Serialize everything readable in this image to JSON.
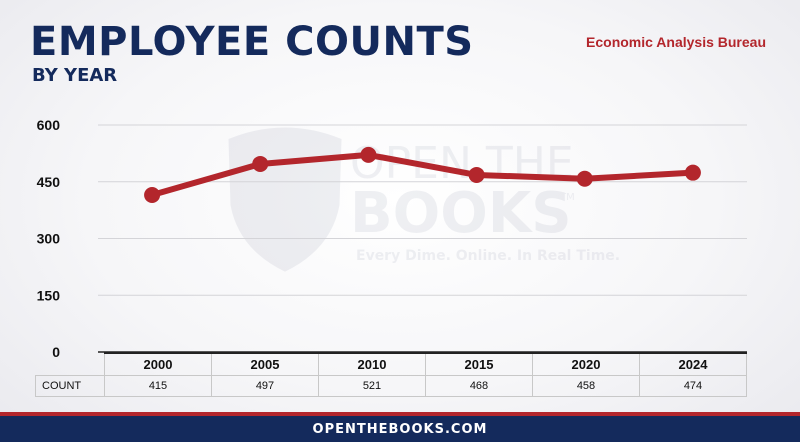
{
  "header": {
    "title": "EMPLOYEE COUNTS",
    "subtitle": "BY YEAR",
    "source": "Economic Analysis Bureau"
  },
  "watermark": {
    "line1": "OPEN THE",
    "line2": "BOOKS",
    "tagline": "Every Dime. Online. In Real Time.",
    "trademark": "TM"
  },
  "footer": {
    "text": "OPENTHEBOOKS.COM"
  },
  "colors": {
    "navy": "#142a5c",
    "red": "#b3262c"
  },
  "chart_data": {
    "type": "line",
    "categories": [
      "2000",
      "2005",
      "2010",
      "2015",
      "2020",
      "2024"
    ],
    "values": [
      415,
      497,
      521,
      468,
      458,
      474
    ],
    "yticks": [
      0,
      150,
      300,
      450,
      600
    ],
    "ylim": [
      0,
      600
    ],
    "table_row_label": "COUNT",
    "grid": true,
    "legend": "none"
  }
}
